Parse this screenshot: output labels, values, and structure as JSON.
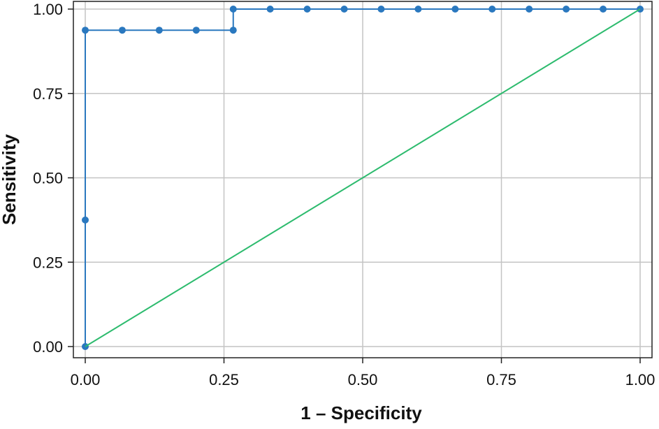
{
  "chart_data": {
    "type": "line",
    "title": "",
    "xlabel": "1 – Specificity",
    "ylabel": "Sensitivity",
    "xlim": [
      0,
      1
    ],
    "ylim": [
      0,
      1
    ],
    "x_ticks": [
      0,
      0.25,
      0.5,
      0.75,
      1
    ],
    "y_ticks": [
      0,
      0.25,
      0.5,
      0.75,
      1
    ],
    "x_tick_labels": [
      "0.00",
      "0.25",
      "0.50",
      "0.75",
      "1.00"
    ],
    "y_tick_labels": [
      "0.00",
      "0.25",
      "0.50",
      "0.75",
      "1.00"
    ],
    "grid": true,
    "series": [
      {
        "style": "step",
        "color": "#2a78bf",
        "markers": true,
        "points": [
          [
            0.0,
            0.0
          ],
          [
            0.0,
            0.375
          ],
          [
            0.0,
            0.9375
          ],
          [
            0.0667,
            0.9375
          ],
          [
            0.1333,
            0.9375
          ],
          [
            0.2,
            0.9375
          ],
          [
            0.2667,
            0.9375
          ],
          [
            0.2667,
            1.0
          ],
          [
            0.3333,
            1.0
          ],
          [
            0.4,
            1.0
          ],
          [
            0.4667,
            1.0
          ],
          [
            0.5333,
            1.0
          ],
          [
            0.6,
            1.0
          ],
          [
            0.6667,
            1.0
          ],
          [
            0.7333,
            1.0
          ],
          [
            0.8,
            1.0
          ],
          [
            0.8667,
            1.0
          ],
          [
            0.9333,
            1.0
          ],
          [
            1.0,
            1.0
          ]
        ]
      },
      {
        "style": "line",
        "color": "#2dbb6e",
        "markers": false,
        "points": [
          [
            0,
            0
          ],
          [
            1,
            1
          ]
        ]
      }
    ]
  }
}
